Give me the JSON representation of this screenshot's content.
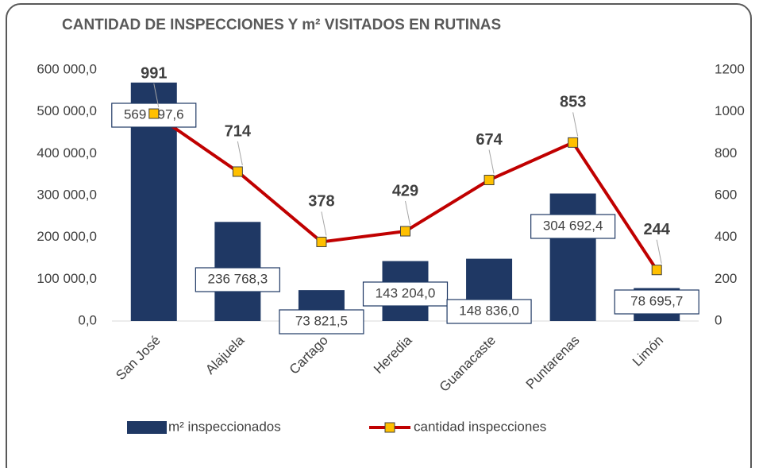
{
  "chart_data": {
    "type": "bar-line",
    "title": "CANTIDAD DE INSPECCIONES Y m² VISITADOS EN RUTINAS",
    "categories": [
      "San José",
      "Alajuela",
      "Cartago",
      "Heredia",
      "Guanacaste",
      "Puntarenas",
      "Limón"
    ],
    "series": [
      {
        "name": "m² inspeccionados",
        "type": "bar",
        "color": "#1f3864",
        "axis": "y",
        "values": [
          569797.6,
          236768.3,
          73821.5,
          143204.0,
          148836.0,
          304692.4,
          78695.7
        ],
        "value_labels": [
          "569 797,6",
          "236 768,3",
          "73 821,5",
          "143 204,0",
          "148 836,0",
          "304 692,4",
          "78 695,7"
        ]
      },
      {
        "name": "cantidad inspecciones",
        "type": "line",
        "color": "#c00000",
        "marker_color": "#ffc000",
        "axis": "y2",
        "values": [
          991,
          714,
          378,
          429,
          674,
          853,
          244
        ]
      }
    ],
    "ylim": [
      0,
      600000
    ],
    "yticks": [
      {
        "value": 0,
        "label": "0,0"
      },
      {
        "value": 100000,
        "label": "100 000,0"
      },
      {
        "value": 200000,
        "label": "200 000,0"
      },
      {
        "value": 300000,
        "label": "300 000,0"
      },
      {
        "value": 400000,
        "label": "400 000,0"
      },
      {
        "value": 500000,
        "label": "500 000,0"
      },
      {
        "value": 600000,
        "label": "600 000,0"
      }
    ],
    "y2lim": [
      0,
      1200
    ],
    "y2ticks": [
      0,
      200,
      400,
      600,
      800,
      1000,
      1200
    ],
    "grid": false,
    "legend": "bottom"
  }
}
